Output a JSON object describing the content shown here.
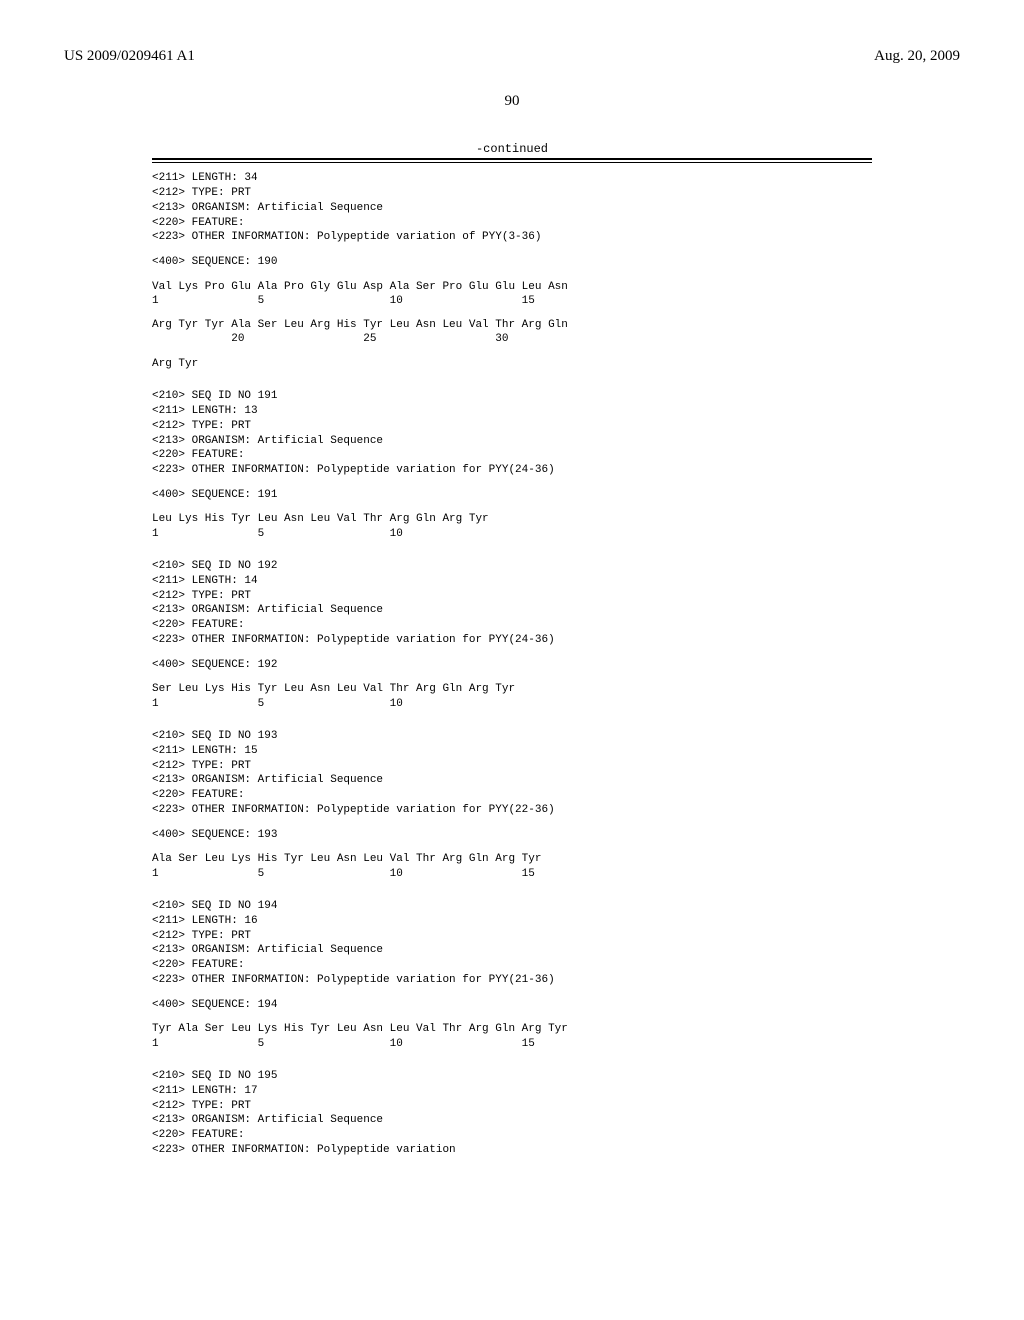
{
  "header": {
    "pub_number": "US 2009/0209461 A1",
    "date": "Aug. 20, 2009"
  },
  "page_number": "90",
  "continued": "-continued",
  "seq190": {
    "h1": "<211> LENGTH: 34",
    "h2": "<212> TYPE: PRT",
    "h3": "<213> ORGANISM: Artificial Sequence",
    "h4": "<220> FEATURE:",
    "h5": "<223> OTHER INFORMATION: Polypeptide variation of PYY(3-36)",
    "seq_label": "<400> SEQUENCE: 190",
    "line1": "Val Lys Pro Glu Ala Pro Gly Glu Asp Ala Ser Pro Glu Glu Leu Asn",
    "idx1": "1               5                   10                  15",
    "line2": "Arg Tyr Tyr Ala Ser Leu Arg His Tyr Leu Asn Leu Val Thr Arg Gln",
    "idx2": "            20                  25                  30",
    "line3": "Arg Tyr"
  },
  "seq191": {
    "h0": "<210> SEQ ID NO 191",
    "h1": "<211> LENGTH: 13",
    "h2": "<212> TYPE: PRT",
    "h3": "<213> ORGANISM: Artificial Sequence",
    "h4": "<220> FEATURE:",
    "h5": "<223> OTHER INFORMATION: Polypeptide variation for PYY(24-36)",
    "seq_label": "<400> SEQUENCE: 191",
    "line1": "Leu Lys His Tyr Leu Asn Leu Val Thr Arg Gln Arg Tyr",
    "idx1": "1               5                   10"
  },
  "seq192": {
    "h0": "<210> SEQ ID NO 192",
    "h1": "<211> LENGTH: 14",
    "h2": "<212> TYPE: PRT",
    "h3": "<213> ORGANISM: Artificial Sequence",
    "h4": "<220> FEATURE:",
    "h5": "<223> OTHER INFORMATION: Polypeptide variation for PYY(24-36)",
    "seq_label": "<400> SEQUENCE: 192",
    "line1": "Ser Leu Lys His Tyr Leu Asn Leu Val Thr Arg Gln Arg Tyr",
    "idx1": "1               5                   10"
  },
  "seq193": {
    "h0": "<210> SEQ ID NO 193",
    "h1": "<211> LENGTH: 15",
    "h2": "<212> TYPE: PRT",
    "h3": "<213> ORGANISM: Artificial Sequence",
    "h4": "<220> FEATURE:",
    "h5": "<223> OTHER INFORMATION: Polypeptide variation for PYY(22-36)",
    "seq_label": "<400> SEQUENCE: 193",
    "line1": "Ala Ser Leu Lys His Tyr Leu Asn Leu Val Thr Arg Gln Arg Tyr",
    "idx1": "1               5                   10                  15"
  },
  "seq194": {
    "h0": "<210> SEQ ID NO 194",
    "h1": "<211> LENGTH: 16",
    "h2": "<212> TYPE: PRT",
    "h3": "<213> ORGANISM: Artificial Sequence",
    "h4": "<220> FEATURE:",
    "h5": "<223> OTHER INFORMATION: Polypeptide variation for PYY(21-36)",
    "seq_label": "<400> SEQUENCE: 194",
    "line1": "Tyr Ala Ser Leu Lys His Tyr Leu Asn Leu Val Thr Arg Gln Arg Tyr",
    "idx1": "1               5                   10                  15"
  },
  "seq195": {
    "h0": "<210> SEQ ID NO 195",
    "h1": "<211> LENGTH: 17",
    "h2": "<212> TYPE: PRT",
    "h3": "<213> ORGANISM: Artificial Sequence",
    "h4": "<220> FEATURE:",
    "h5": "<223> OTHER INFORMATION: Polypeptide variation"
  }
}
